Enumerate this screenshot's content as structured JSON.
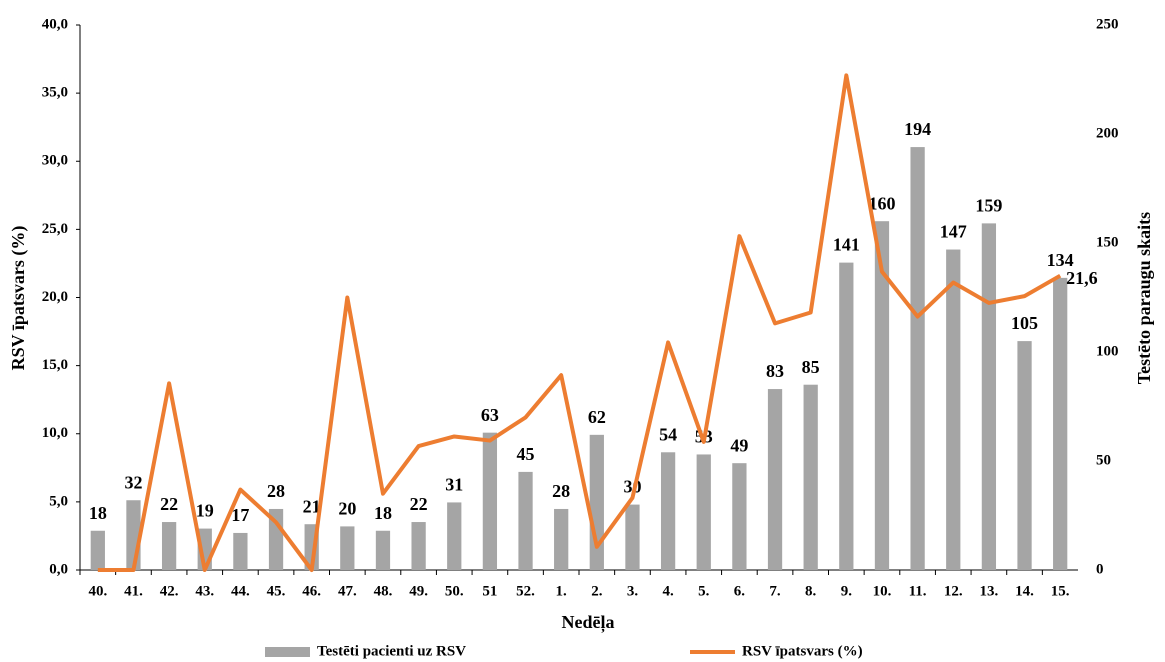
{
  "chart_data": {
    "type": "bar-line",
    "categories": [
      "40.",
      "41.",
      "42.",
      "43.",
      "44.",
      "45.",
      "46.",
      "47.",
      "48.",
      "49.",
      "50.",
      "51",
      "52.",
      "1.",
      "2.",
      "3.",
      "4.",
      "5.",
      "6.",
      "7.",
      "8.",
      "9.",
      "10.",
      "11.",
      "12.",
      "13.",
      "14.",
      "15."
    ],
    "x_label": "Nedēļa",
    "y_label": "RSV īpatsvars (%)",
    "y2_label": "Testēto paraugu skaits",
    "series": [
      {
        "name": "Testēti pacienti uz RSV",
        "type": "bar",
        "axis": "y2",
        "color": "#a5a5a5",
        "values": [
          18,
          32,
          22,
          19,
          17,
          28,
          21,
          20,
          18,
          22,
          31,
          63,
          45,
          28,
          62,
          30,
          54,
          53,
          49,
          83,
          85,
          141,
          160,
          194,
          147,
          159,
          105,
          134
        ]
      },
      {
        "name": "RSV īpatsvars (%)",
        "type": "line",
        "axis": "y",
        "color": "#ed7d31",
        "values": [
          0,
          0,
          13.7,
          0,
          5.9,
          3.5,
          0,
          20.0,
          5.6,
          9.1,
          9.8,
          9.5,
          11.2,
          14.3,
          1.7,
          5.3,
          16.7,
          9.4,
          24.5,
          18.1,
          18.9,
          36.3,
          21.9,
          18.6,
          21.1,
          19.6,
          20.1,
          21.6
        ],
        "value_labels": [
          null,
          null,
          null,
          null,
          null,
          null,
          null,
          null,
          null,
          null,
          null,
          null,
          null,
          null,
          null,
          null,
          null,
          null,
          null,
          null,
          null,
          null,
          null,
          null,
          null,
          null,
          null,
          "21,6"
        ]
      }
    ],
    "ylim": [
      0,
      40
    ],
    "yticks": [
      {
        "value": 0,
        "label": "0,0"
      },
      {
        "value": 5,
        "label": "5,0"
      },
      {
        "value": 10,
        "label": "10,0"
      },
      {
        "value": 15,
        "label": "15,0"
      },
      {
        "value": 20,
        "label": "20,0"
      },
      {
        "value": 25,
        "label": "25,0"
      },
      {
        "value": 30,
        "label": "30,0"
      },
      {
        "value": 35,
        "label": "35,0"
      },
      {
        "value": 40,
        "label": "40,0"
      }
    ],
    "y2lim": [
      0,
      250
    ],
    "y2ticks": [
      0,
      50,
      100,
      150,
      200,
      250
    ],
    "legend": "bottom"
  }
}
